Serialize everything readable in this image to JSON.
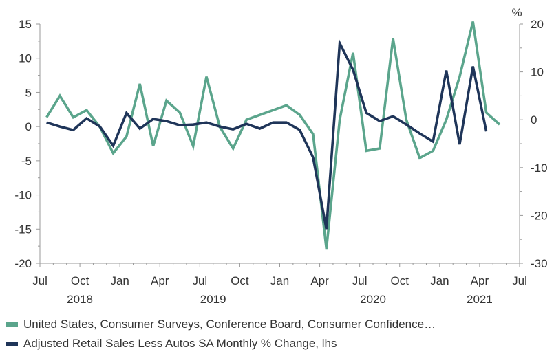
{
  "chart_data": {
    "type": "line",
    "right_axis_unit": "%",
    "left_axis": {
      "ylim": [
        -20,
        15
      ],
      "ticks": [
        -20,
        -15,
        -10,
        -5,
        0,
        5,
        10,
        15
      ]
    },
    "right_axis": {
      "ylim": [
        -30,
        20
      ],
      "ticks": [
        -30,
        -20,
        -10,
        0,
        10,
        20
      ]
    },
    "x_axis": {
      "start": "2018-07",
      "end": "2021-07",
      "month_labels": [
        {
          "m": 0,
          "label": "Jul"
        },
        {
          "m": 3,
          "label": "Oct"
        },
        {
          "m": 6,
          "label": "Jan"
        },
        {
          "m": 9,
          "label": "Apr"
        },
        {
          "m": 12,
          "label": "Jul"
        },
        {
          "m": 15,
          "label": "Oct"
        },
        {
          "m": 18,
          "label": "Jan"
        },
        {
          "m": 21,
          "label": "Apr"
        },
        {
          "m": 24,
          "label": "Jul"
        },
        {
          "m": 27,
          "label": "Oct"
        },
        {
          "m": 30,
          "label": "Jan"
        },
        {
          "m": 33,
          "label": "Apr"
        },
        {
          "m": 36,
          "label": "Jul"
        }
      ],
      "year_labels": [
        {
          "m": 3,
          "label": "2018"
        },
        {
          "m": 13,
          "label": "2019"
        },
        {
          "m": 25,
          "label": "2020"
        },
        {
          "m": 33,
          "label": "2021"
        }
      ]
    },
    "grid": false,
    "legend_position": "bottom",
    "series": [
      {
        "name": "United States, Consumer Surveys, Conference Board, Consumer Confidence…",
        "axis": "right",
        "color": "#5ba58c",
        "x": [
          "2018-07",
          "2018-08",
          "2018-09",
          "2018-10",
          "2018-11",
          "2018-12",
          "2019-01",
          "2019-02",
          "2019-03",
          "2019-04",
          "2019-05",
          "2019-06",
          "2019-07",
          "2019-08",
          "2019-09",
          "2019-10",
          "2019-11",
          "2019-12",
          "2020-01",
          "2020-02",
          "2020-03",
          "2020-04",
          "2020-05",
          "2020-06",
          "2020-07",
          "2020-08",
          "2020-09",
          "2020-10",
          "2020-11",
          "2020-12",
          "2021-01",
          "2021-02",
          "2021-03",
          "2021-04",
          "2021-05"
        ],
        "values": [
          0.5,
          5,
          0.5,
          2,
          -1.5,
          -7,
          -3.5,
          7.5,
          -5.5,
          4,
          1.5,
          -5.5,
          9,
          -1.5,
          -6,
          0,
          1,
          2,
          3,
          1,
          -3,
          -27,
          0,
          14,
          -6.5,
          -6,
          17,
          0,
          -8,
          -6.5,
          0,
          9,
          20.5,
          1.5,
          -1
        ]
      },
      {
        "name": "Adjusted Retail Sales Less Autos SA Monthly % Change, lhs",
        "axis": "left",
        "color": "#1f3559",
        "x": [
          "2018-07",
          "2018-08",
          "2018-09",
          "2018-10",
          "2018-11",
          "2018-12",
          "2019-01",
          "2019-02",
          "2019-03",
          "2019-04",
          "2019-05",
          "2019-06",
          "2019-07",
          "2019-08",
          "2019-09",
          "2019-10",
          "2019-11",
          "2019-12",
          "2020-01",
          "2020-02",
          "2020-03",
          "2020-04",
          "2020-05",
          "2020-06",
          "2020-07",
          "2020-08",
          "2020-09",
          "2020-10",
          "2020-11",
          "2020-12",
          "2021-01",
          "2021-02",
          "2021-03",
          "2021-04"
        ],
        "values": [
          0.6,
          0,
          -0.5,
          1.2,
          0,
          -2.8,
          2,
          -0.3,
          1.1,
          0.8,
          0.2,
          0.3,
          0.6,
          0,
          -0.4,
          0.4,
          -0.3,
          0.6,
          0.6,
          -0.5,
          -4.5,
          -15,
          12.2,
          8.3,
          2,
          0.8,
          1.5,
          0.3,
          -1,
          -2.2,
          8.2,
          -2.6,
          8.8,
          -0.7
        ]
      }
    ]
  }
}
